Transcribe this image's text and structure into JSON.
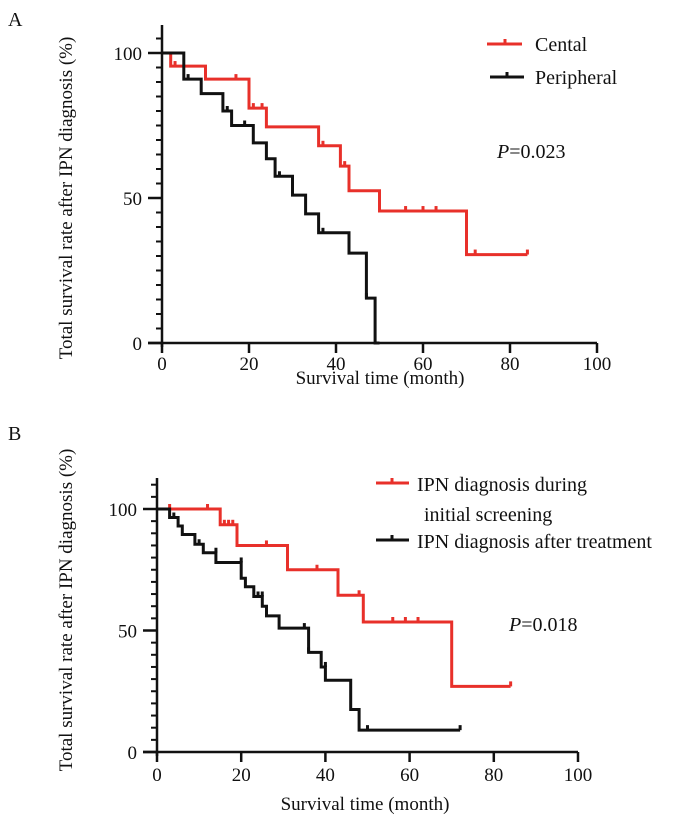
{
  "chart_data": [
    {
      "type": "line",
      "subtype": "kaplan-meier-step",
      "panel_label": "A",
      "title": "",
      "xlabel": "Survival time (month)",
      "ylabel": "Total survival rate after IPN diagnosis (%)",
      "xlim": [
        0,
        100
      ],
      "ylim": [
        0,
        100
      ],
      "x_ticks": [
        "0",
        "20",
        "40",
        "60",
        "80",
        "100"
      ],
      "y_ticks": [
        "0",
        "50",
        "100"
      ],
      "grid": false,
      "legend_position": "top-right",
      "annotation": {
        "prefix": "P",
        "text": "=0.023"
      },
      "series": [
        {
          "name": "Cental",
          "color": "#e8302a",
          "steps": [
            [
              0,
              100
            ],
            [
              2,
              100
            ],
            [
              2,
              95.5
            ],
            [
              10,
              95.5
            ],
            [
              10,
              91
            ],
            [
              20,
              91
            ],
            [
              20,
              81
            ],
            [
              24,
              81
            ],
            [
              24,
              74.5
            ],
            [
              36,
              74.5
            ],
            [
              36,
              68
            ],
            [
              41,
              68
            ],
            [
              41,
              61
            ],
            [
              43,
              61
            ],
            [
              43,
              52.5
            ],
            [
              50,
              52.5
            ],
            [
              50,
              45.5
            ],
            [
              70,
              45.5
            ],
            [
              70,
              30.5
            ],
            [
              84,
              30.5
            ]
          ],
          "censored": [
            [
              3,
              95.5
            ],
            [
              17,
              91
            ],
            [
              21,
              81
            ],
            [
              23,
              81
            ],
            [
              37,
              68
            ],
            [
              42,
              61
            ],
            [
              56,
              45.5
            ],
            [
              60,
              45.5
            ],
            [
              63,
              45.5
            ],
            [
              72,
              30.5
            ],
            [
              84,
              30.5
            ]
          ]
        },
        {
          "name": "Peripheral",
          "color": "#111111",
          "steps": [
            [
              0,
              100
            ],
            [
              5,
              100
            ],
            [
              5,
              91
            ],
            [
              9,
              91
            ],
            [
              9,
              86
            ],
            [
              14,
              86
            ],
            [
              14,
              80
            ],
            [
              16,
              80
            ],
            [
              16,
              75
            ],
            [
              21,
              75
            ],
            [
              21,
              69
            ],
            [
              24,
              69
            ],
            [
              24,
              63.5
            ],
            [
              26,
              63.5
            ],
            [
              26,
              57.5
            ],
            [
              30,
              57.5
            ],
            [
              30,
              51
            ],
            [
              33,
              51
            ],
            [
              33,
              44.5
            ],
            [
              36,
              44.5
            ],
            [
              36,
              38
            ],
            [
              43,
              38
            ],
            [
              43,
              31
            ],
            [
              47,
              31
            ],
            [
              47,
              15.5
            ],
            [
              49,
              15.5
            ],
            [
              49,
              0
            ],
            [
              50,
              0
            ]
          ],
          "censored": [
            [
              6,
              91
            ],
            [
              15,
              80
            ],
            [
              19,
              75
            ],
            [
              27,
              57.5
            ],
            [
              37,
              38
            ],
            [
              47,
              15.5
            ]
          ]
        }
      ]
    },
    {
      "type": "line",
      "subtype": "kaplan-meier-step",
      "panel_label": "B",
      "title": "",
      "xlabel": "Survival time (month)",
      "ylabel": "Total survival rate after IPN diagnosis (%)",
      "xlim": [
        0,
        100
      ],
      "ylim": [
        0,
        100
      ],
      "x_ticks": [
        "0",
        "20",
        "40",
        "60",
        "80",
        "100"
      ],
      "y_ticks": [
        "0",
        "50",
        "100"
      ],
      "grid": false,
      "legend_position": "top-right",
      "annotation": {
        "prefix": "P",
        "text": "=0.018"
      },
      "series": [
        {
          "name": "IPN diagnosis during initial screening",
          "legend_lines": [
            "IPN diagnosis during",
            " initial screening"
          ],
          "color": "#e8302a",
          "steps": [
            [
              0,
              100
            ],
            [
              15,
              100
            ],
            [
              15,
              93.5
            ],
            [
              19,
              93.5
            ],
            [
              19,
              85
            ],
            [
              31,
              85
            ],
            [
              31,
              75
            ],
            [
              43,
              75
            ],
            [
              43,
              64.5
            ],
            [
              49,
              64.5
            ],
            [
              49,
              53.5
            ],
            [
              70,
              53.5
            ],
            [
              70,
              27
            ],
            [
              84,
              27
            ]
          ],
          "censored": [
            [
              3,
              100
            ],
            [
              12,
              100
            ],
            [
              16,
              93.5
            ],
            [
              17,
              93.5
            ],
            [
              18,
              93.5
            ],
            [
              26,
              85
            ],
            [
              38,
              75
            ],
            [
              48,
              64.5
            ],
            [
              56,
              53.5
            ],
            [
              59,
              53.5
            ],
            [
              62,
              53.5
            ],
            [
              84,
              27
            ]
          ]
        },
        {
          "name": "IPN diagnosis after treatment",
          "legend_lines": [
            "IPN diagnosis after treatment"
          ],
          "color": "#111111",
          "steps": [
            [
              0,
              100
            ],
            [
              3,
              100
            ],
            [
              3,
              96.5
            ],
            [
              5,
              96.5
            ],
            [
              5,
              93
            ],
            [
              6,
              93
            ],
            [
              6,
              89.5
            ],
            [
              9,
              89.5
            ],
            [
              9,
              85.5
            ],
            [
              11,
              85.5
            ],
            [
              11,
              82
            ],
            [
              14,
              82
            ],
            [
              14,
              78
            ],
            [
              20,
              78
            ],
            [
              20,
              71.5
            ],
            [
              21,
              71.5
            ],
            [
              21,
              68
            ],
            [
              23,
              68
            ],
            [
              23,
              64
            ],
            [
              25,
              64
            ],
            [
              25,
              60
            ],
            [
              26,
              60
            ],
            [
              26,
              56
            ],
            [
              29,
              56
            ],
            [
              29,
              51
            ],
            [
              36,
              51
            ],
            [
              36,
              41
            ],
            [
              39,
              41
            ],
            [
              39,
              35
            ],
            [
              40,
              35
            ],
            [
              40,
              29.5
            ],
            [
              46,
              29.5
            ],
            [
              46,
              17.5
            ],
            [
              48,
              17.5
            ],
            [
              48,
              9
            ],
            [
              72,
              9
            ]
          ],
          "censored": [
            [
              4,
              96.5
            ],
            [
              10,
              85.5
            ],
            [
              14,
              82
            ],
            [
              20,
              78
            ],
            [
              24,
              64
            ],
            [
              25,
              64
            ],
            [
              35,
              51
            ],
            [
              36,
              41
            ],
            [
              40,
              35
            ],
            [
              50,
              9
            ],
            [
              72,
              9
            ]
          ]
        }
      ]
    }
  ]
}
